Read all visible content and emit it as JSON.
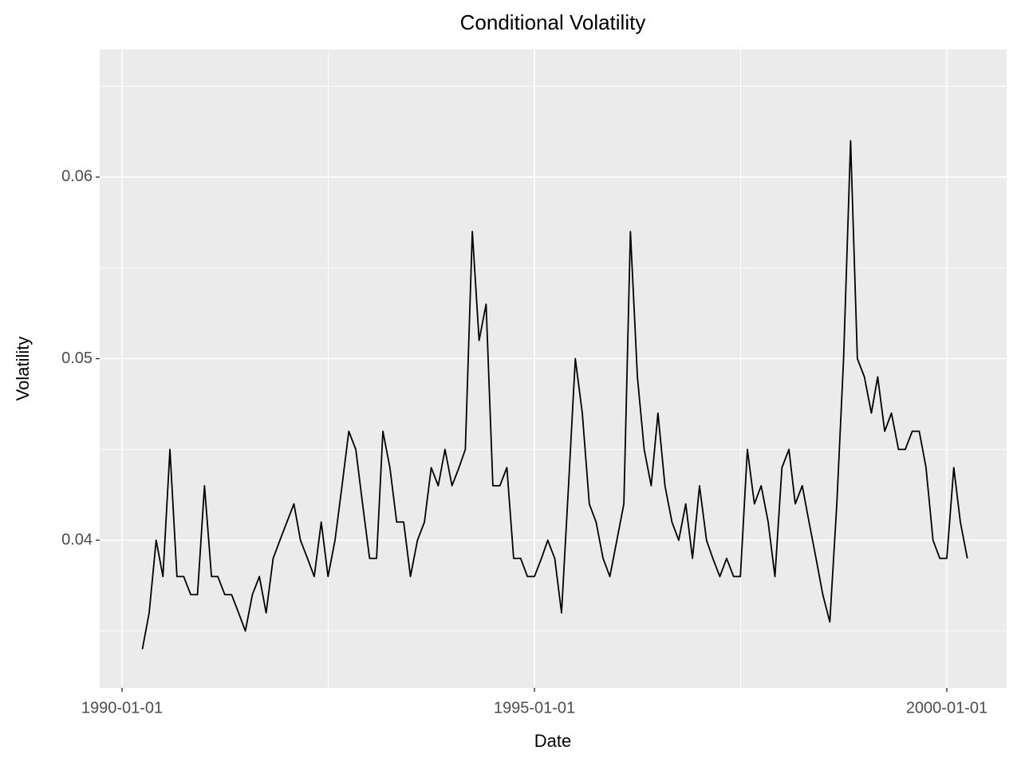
{
  "chart_data": {
    "type": "line",
    "title": "Conditional Volatility",
    "x_label": "Date",
    "y_label": "Volatility",
    "x": [
      "1990-04-01",
      "1990-05-01",
      "1990-06-01",
      "1990-07-01",
      "1990-08-01",
      "1990-09-01",
      "1990-10-01",
      "1990-11-01",
      "1990-12-01",
      "1991-01-01",
      "1991-02-01",
      "1991-03-01",
      "1991-04-01",
      "1991-05-01",
      "1991-06-01",
      "1991-07-01",
      "1991-08-01",
      "1991-09-01",
      "1991-10-01",
      "1991-11-01",
      "1991-12-01",
      "1992-01-01",
      "1992-02-01",
      "1992-03-01",
      "1992-04-01",
      "1992-05-01",
      "1992-06-01",
      "1992-07-01",
      "1992-08-01",
      "1992-09-01",
      "1992-10-01",
      "1992-11-01",
      "1992-12-01",
      "1993-01-01",
      "1993-02-01",
      "1993-03-01",
      "1993-04-01",
      "1993-05-01",
      "1993-06-01",
      "1993-07-01",
      "1993-08-01",
      "1993-09-01",
      "1993-10-01",
      "1993-11-01",
      "1993-12-01",
      "1994-01-01",
      "1994-02-01",
      "1994-03-01",
      "1994-04-01",
      "1994-05-01",
      "1994-06-01",
      "1994-07-01",
      "1994-08-01",
      "1994-09-01",
      "1994-10-01",
      "1994-11-01",
      "1994-12-01",
      "1995-01-01",
      "1995-02-01",
      "1995-03-01",
      "1995-04-01",
      "1995-05-01",
      "1995-06-01",
      "1995-07-01",
      "1995-08-01",
      "1995-09-01",
      "1995-10-01",
      "1995-11-01",
      "1995-12-01",
      "1996-01-01",
      "1996-02-01",
      "1996-03-01",
      "1996-04-01",
      "1996-05-01",
      "1996-06-01",
      "1996-07-01",
      "1996-08-01",
      "1996-09-01",
      "1996-10-01",
      "1996-11-01",
      "1996-12-01",
      "1997-01-01",
      "1997-02-01",
      "1997-03-01",
      "1997-04-01",
      "1997-05-01",
      "1997-06-01",
      "1997-07-01",
      "1997-08-01",
      "1997-09-01",
      "1997-10-01",
      "1997-11-01",
      "1997-12-01",
      "1998-01-01",
      "1998-02-01",
      "1998-03-01",
      "1998-04-01",
      "1998-05-01",
      "1998-06-01",
      "1998-07-01",
      "1998-08-01",
      "1998-09-01",
      "1998-10-01",
      "1998-11-01",
      "1998-12-01",
      "1999-01-01",
      "1999-02-01",
      "1999-03-01",
      "1999-04-01",
      "1999-05-01",
      "1999-06-01",
      "1999-07-01",
      "1999-08-01",
      "1999-09-01",
      "1999-10-01",
      "1999-11-01",
      "1999-12-01",
      "2000-01-01",
      "2000-02-01",
      "2000-03-01",
      "2000-04-01"
    ],
    "series": [
      {
        "name": "Volatility",
        "color": "#000000",
        "values": [
          0.034,
          0.036,
          0.04,
          0.038,
          0.045,
          0.038,
          0.038,
          0.037,
          0.037,
          0.043,
          0.038,
          0.038,
          0.037,
          0.037,
          0.036,
          0.035,
          0.037,
          0.038,
          0.036,
          0.039,
          0.04,
          0.041,
          0.042,
          0.04,
          0.039,
          0.038,
          0.041,
          0.038,
          0.04,
          0.043,
          0.046,
          0.045,
          0.042,
          0.039,
          0.039,
          0.046,
          0.044,
          0.041,
          0.041,
          0.038,
          0.04,
          0.041,
          0.044,
          0.043,
          0.045,
          0.043,
          0.044,
          0.045,
          0.057,
          0.051,
          0.053,
          0.043,
          0.043,
          0.044,
          0.039,
          0.039,
          0.038,
          0.038,
          0.039,
          0.04,
          0.039,
          0.036,
          0.043,
          0.05,
          0.047,
          0.042,
          0.041,
          0.039,
          0.038,
          0.04,
          0.042,
          0.057,
          0.049,
          0.045,
          0.043,
          0.047,
          0.043,
          0.041,
          0.04,
          0.042,
          0.039,
          0.043,
          0.04,
          0.039,
          0.038,
          0.039,
          0.038,
          0.038,
          0.045,
          0.042,
          0.043,
          0.041,
          0.038,
          0.044,
          0.045,
          0.042,
          0.043,
          0.041,
          0.039,
          0.037,
          0.0355,
          0.042,
          0.05,
          0.062,
          0.05,
          0.049,
          0.047,
          0.049,
          0.046,
          0.047,
          0.045,
          0.045,
          0.046,
          0.046,
          0.044,
          0.04,
          0.039,
          0.039,
          0.044,
          0.041,
          0.039
        ]
      }
    ],
    "xlim": [
      "1989-09-24",
      "2000-09-22"
    ],
    "xticks": [
      "1990-01-01",
      "1995-01-01",
      "2000-01-01"
    ],
    "ylim": [
      0.03187,
      0.06703
    ],
    "yticks": [
      0.04,
      0.05,
      0.06
    ],
    "grid": true
  }
}
